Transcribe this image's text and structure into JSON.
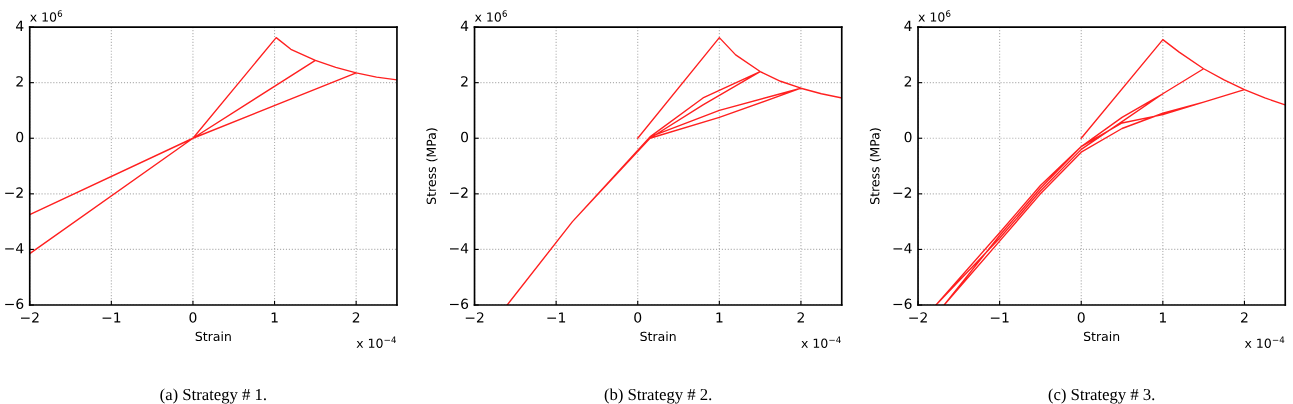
{
  "chart_data": [
    {
      "type": "line",
      "title": "(a) Strategy # 1.",
      "xlabel": "Strain",
      "annotations": [
        "x 10$^{6}$",
        "x 10$^{−4}$"
      ],
      "xlim": [
        -2,
        2.5
      ],
      "ylim": [
        -6,
        4
      ],
      "xticks": [
        -2,
        -1,
        0,
        1,
        2
      ],
      "yticks": [
        -6,
        -4,
        -2,
        0,
        2,
        4
      ],
      "grid": true,
      "series": [
        {
          "color": "#ff2020",
          "x": [
            0,
            1.02,
            1.2,
            1.5,
            0,
            -2,
            0,
            1.5,
            1.75,
            2.0,
            0,
            -2,
            0,
            2.0,
            2.25,
            2.5
          ],
          "values": [
            0,
            3.62,
            3.2,
            2.8,
            0,
            -4.15,
            0,
            2.8,
            2.55,
            2.35,
            0,
            -2.75,
            0,
            2.35,
            2.2,
            2.1
          ]
        }
      ]
    },
    {
      "type": "line",
      "title": "(b) Strategy # 2.",
      "xlabel": "Strain",
      "ylabel": "Stress (MPa)",
      "annotations": [
        "x 10$^{6}$",
        "x 10$^{−4}$"
      ],
      "xlim": [
        -2,
        2.5
      ],
      "ylim": [
        -6,
        4
      ],
      "xticks": [
        -2,
        -1,
        0,
        1,
        2
      ],
      "yticks": [
        -6,
        -4,
        -2,
        0,
        2,
        4
      ],
      "grid": true,
      "series": [
        {
          "color": "#ff2020",
          "x": [
            0,
            1.0,
            1.2,
            1.5,
            0.8,
            0.15,
            -0.8,
            -1.6,
            -0.8,
            0.15,
            0.8,
            1.5,
            1.75,
            2.0,
            1.0,
            0.15,
            -0.8,
            -1.6,
            -0.8,
            0.15,
            1.0,
            2.0,
            2.25,
            2.5
          ],
          "values": [
            0,
            3.62,
            3.0,
            2.4,
            1.45,
            0.05,
            -3.0,
            -6.0,
            -3.0,
            0.0,
            1.2,
            2.4,
            2.05,
            1.8,
            1.0,
            0.05,
            -3.0,
            -6.0,
            -3.0,
            0.0,
            0.75,
            1.8,
            1.6,
            1.45
          ]
        }
      ]
    },
    {
      "type": "line",
      "title": "(c) Strategy # 3.",
      "xlabel": "Strain",
      "ylabel": "Stress (MPa)",
      "annotations": [
        "x 10$^{6}$",
        "x 10$^{−4}$"
      ],
      "xlim": [
        -2,
        2.5
      ],
      "ylim": [
        -6,
        4
      ],
      "xticks": [
        -2,
        -1,
        0,
        1,
        2
      ],
      "yticks": [
        -6,
        -4,
        -2,
        0,
        2,
        4
      ],
      "grid": true,
      "series": [
        {
          "color": "#ff2020",
          "x": [
            0,
            1.0,
            1.2,
            1.5,
            1.0,
            0.5,
            0,
            -0.5,
            -1.0,
            -1.78,
            -1.0,
            -0.5,
            0,
            0.5,
            1.0,
            1.5,
            1.75,
            2.0,
            1.5,
            1.0,
            0.5,
            0,
            -0.5,
            -1.0,
            -1.68,
            -1.0,
            -0.5,
            0,
            0.5,
            1.0,
            2.0,
            2.25,
            2.5
          ],
          "values": [
            0,
            3.55,
            3.1,
            2.5,
            1.6,
            0.75,
            -0.3,
            -1.7,
            -3.4,
            -6.0,
            -3.6,
            -1.9,
            -0.4,
            0.6,
            1.6,
            2.5,
            2.1,
            1.75,
            1.3,
            0.9,
            0.35,
            -0.5,
            -2.0,
            -3.7,
            -6.0,
            -3.5,
            -1.8,
            -0.3,
            0.55,
            0.85,
            1.75,
            1.45,
            1.2
          ]
        }
      ]
    }
  ]
}
